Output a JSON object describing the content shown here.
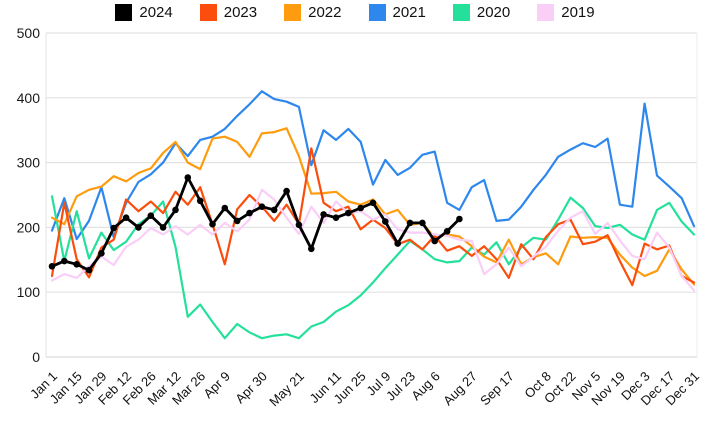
{
  "legend": {
    "items": [
      {
        "label": "2024",
        "color": "#000000"
      },
      {
        "label": "2023",
        "color": "#fb4d0c"
      },
      {
        "label": "2022",
        "color": "#fe9b0e"
      },
      {
        "label": "2021",
        "color": "#2d87ec"
      },
      {
        "label": "2020",
        "color": "#25e09a"
      },
      {
        "label": "2019",
        "color": "#f9cef7"
      }
    ]
  },
  "chart_data": {
    "type": "line",
    "title": "",
    "xlabel": "",
    "ylabel": "",
    "x_unit": "week (Jan 1 = week 0, 53 weekly points per full year)",
    "ylim": [
      0,
      500
    ],
    "y_ticks": [
      0,
      100,
      200,
      300,
      400,
      500
    ],
    "grid": true,
    "legend_position": "top",
    "x_tick_positions": [
      0,
      2,
      4,
      6,
      8,
      10,
      12,
      14,
      17,
      20,
      23,
      25,
      27,
      29,
      31,
      34,
      37,
      40,
      42,
      44,
      46,
      48,
      50,
      52
    ],
    "x_tick_labels": [
      "Jan 1",
      "Jan 15",
      "Jan 29",
      "Feb 12",
      "Feb 26",
      "Mar 12",
      "Mar 26",
      "Apr 9",
      "Apr 30",
      "May 21",
      "Jun 11",
      "Jun 25",
      "Jul 9",
      "Jul 23",
      "Aug 6",
      "Aug 27",
      "Sep 17",
      "Oct 8",
      "Oct 22",
      "Nov 5",
      "Nov 19",
      "Dec 3",
      "Dec 17",
      "Dec 31"
    ],
    "draw_order": [
      "2021",
      "2020",
      "2022",
      "2023",
      "2019",
      "2024"
    ],
    "series": [
      {
        "name": "2024",
        "color": "#000000",
        "marker": true,
        "line_width": 2.8,
        "start_week": 0,
        "values": [
          140,
          148,
          143,
          134,
          160,
          199,
          215,
          200,
          218,
          200,
          227,
          277,
          241,
          205,
          230,
          210,
          222,
          232,
          227,
          256,
          204,
          167,
          220,
          215,
          222,
          230,
          238,
          209,
          175,
          207,
          207,
          179,
          194,
          213
        ]
      },
      {
        "name": "2023",
        "color": "#fb4d0c",
        "marker": false,
        "line_width": 2.2,
        "start_week": 0,
        "values": [
          125,
          238,
          151,
          123,
          169,
          181,
          243,
          225,
          240,
          222,
          255,
          235,
          262,
          205,
          143,
          228,
          250,
          232,
          210,
          235,
          205,
          322,
          238,
          225,
          232,
          197,
          212,
          199,
          174,
          181,
          166,
          187,
          164,
          171,
          156,
          171,
          151,
          122,
          174,
          151,
          185,
          205,
          212,
          174,
          178,
          188,
          148,
          111,
          175,
          166,
          172,
          125,
          115
        ]
      },
      {
        "name": "2022",
        "color": "#fe9b0e",
        "marker": false,
        "line_width": 2.2,
        "start_week": 0,
        "values": [
          215,
          205,
          248,
          258,
          263,
          279,
          271,
          284,
          291,
          315,
          332,
          300,
          290,
          337,
          340,
          332,
          309,
          345,
          347,
          353,
          310,
          252,
          253,
          255,
          240,
          235,
          243,
          220,
          227,
          204,
          207,
          184,
          189,
          186,
          171,
          155,
          146,
          181,
          143,
          154,
          160,
          143,
          186,
          184,
          185,
          184,
          158,
          138,
          125,
          133,
          166,
          135,
          112
        ]
      },
      {
        "name": "2021",
        "color": "#2d87ec",
        "marker": false,
        "line_width": 2.2,
        "start_week": 0,
        "values": [
          195,
          245,
          182,
          210,
          262,
          185,
          238,
          270,
          282,
          300,
          330,
          310,
          335,
          340,
          352,
          372,
          390,
          410,
          398,
          394,
          386,
          296,
          350,
          335,
          352,
          332,
          266,
          304,
          281,
          292,
          312,
          317,
          238,
          227,
          262,
          273,
          210,
          212,
          232,
          258,
          281,
          309,
          320,
          330,
          324,
          337,
          235,
          232,
          391,
          280,
          263,
          245,
          202
        ]
      },
      {
        "name": "2020",
        "color": "#25e09a",
        "marker": false,
        "line_width": 2.2,
        "start_week": 0,
        "values": [
          248,
          148,
          225,
          152,
          192,
          165,
          178,
          205,
          218,
          240,
          170,
          62,
          81,
          54,
          29,
          51,
          38,
          29,
          33,
          35,
          29,
          47,
          54,
          70,
          80,
          95,
          115,
          137,
          158,
          179,
          166,
          151,
          146,
          148,
          169,
          158,
          177,
          143,
          169,
          184,
          181,
          212,
          246,
          230,
          202,
          199,
          204,
          189,
          181,
          227,
          238,
          209,
          189
        ]
      },
      {
        "name": "2019",
        "color": "#f9cef7",
        "marker": false,
        "line_width": 2.2,
        "start_week": 0,
        "values": [
          118,
          128,
          122,
          140,
          155,
          142,
          170,
          181,
          199,
          189,
          202,
          189,
          204,
          189,
          207,
          194,
          212,
          258,
          243,
          215,
          190,
          232,
          207,
          240,
          222,
          225,
          212,
          220,
          197,
          192,
          192,
          189,
          187,
          181,
          179,
          128,
          143,
          169,
          140,
          155,
          170,
          195,
          215,
          225,
          190,
          207,
          180,
          156,
          151,
          192,
          169,
          125,
          103
        ]
      }
    ]
  }
}
